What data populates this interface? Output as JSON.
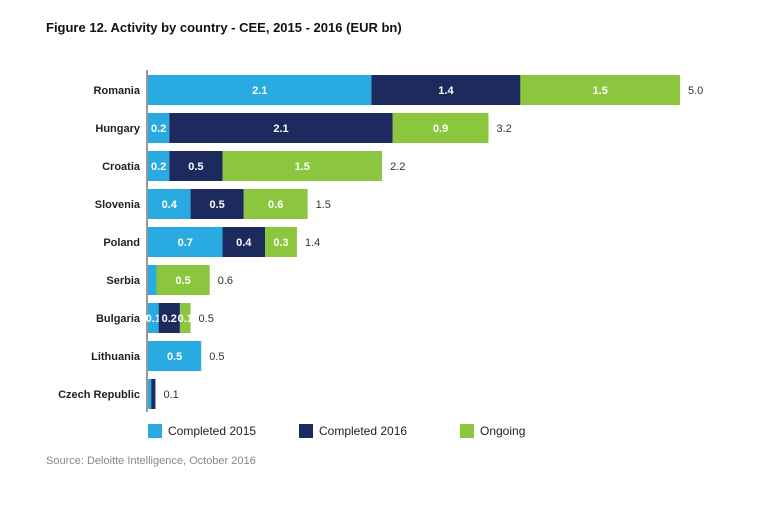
{
  "title": "Figure 12. Activity by country - CEE, 2015 - 2016 (EUR bn)",
  "source": "Source: Deloitte Intelligence, October 2016",
  "colors": {
    "completed_2015": "#29abe2",
    "completed_2016": "#1d2a5e",
    "ongoing": "#8cc63f"
  },
  "chart_data": {
    "type": "bar",
    "orientation": "horizontal",
    "stacked": true,
    "title": "Figure 12. Activity by country - CEE, 2015 - 2016 (EUR bn)",
    "categories": [
      "Romania",
      "Hungary",
      "Croatia",
      "Slovenia",
      "Poland",
      "Serbia",
      "Bulgaria",
      "Lithuania",
      "Czech Republic"
    ],
    "series": [
      {
        "name": "Completed 2015",
        "values": [
          2.1,
          0.2,
          0.2,
          0.4,
          0.7,
          0.08,
          0.1,
          0.5,
          0.03
        ]
      },
      {
        "name": "Completed 2016",
        "values": [
          1.4,
          2.1,
          0.5,
          0.5,
          0.4,
          0.0,
          0.2,
          0.0,
          0.04
        ]
      },
      {
        "name": "Ongoing",
        "values": [
          1.5,
          0.9,
          1.5,
          0.6,
          0.3,
          0.5,
          0.1,
          0.0,
          0.0
        ]
      }
    ],
    "segment_labels": [
      [
        "2.1",
        "0.2",
        "0.2",
        "0.4",
        "0.7",
        "",
        "0.1",
        "0.5",
        ""
      ],
      [
        "1.4",
        "2.1",
        "0.5",
        "0.5",
        "0.4",
        "",
        "0.2",
        "",
        ""
      ],
      [
        "1.5",
        "0.9",
        "1.5",
        "0.6",
        "0.3",
        "0.5",
        "0.1",
        "",
        ""
      ]
    ],
    "totals": [
      "5.0",
      "3.2",
      "2.2",
      "1.5",
      "1.4",
      "0.6",
      "0.5",
      "0.5",
      "0.1"
    ],
    "xlim": [
      0,
      5.0
    ],
    "grid": false,
    "legend_position": "bottom"
  }
}
